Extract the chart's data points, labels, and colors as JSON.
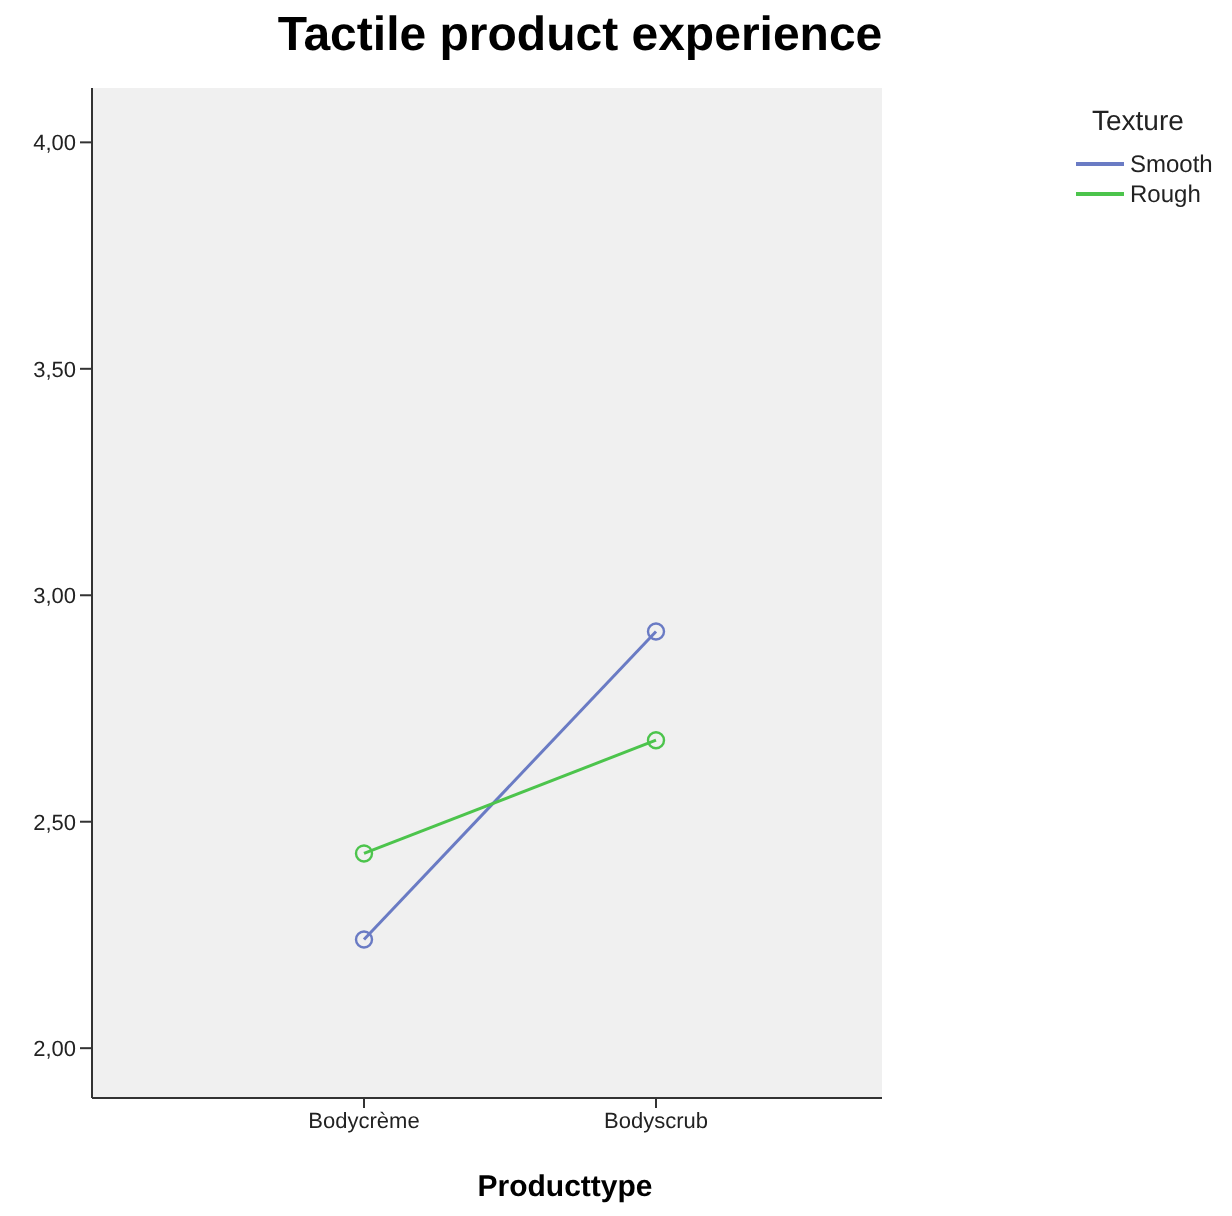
{
  "chart_data": {
    "type": "line",
    "title": "Tactile product experience",
    "xlabel": "Producttype",
    "legend_title": "Texture",
    "categories": [
      "Bodycrème",
      "Bodyscrub"
    ],
    "series": [
      {
        "name": "Smooth",
        "color": "#6a7bc4",
        "values": [
          2.24,
          2.92
        ]
      },
      {
        "name": "Rough",
        "color": "#4cc44c",
        "values": [
          2.43,
          2.68
        ]
      }
    ],
    "ylim": [
      1.89,
      4.12
    ],
    "yticks": [
      {
        "value": 2,
        "label": "2,00"
      },
      {
        "value": 2.5,
        "label": "2,50"
      },
      {
        "value": 3,
        "label": "3,00"
      },
      {
        "value": 3.5,
        "label": "3,50"
      },
      {
        "value": 4,
        "label": "4,00"
      }
    ],
    "grid": false,
    "legend": "right",
    "marker": "circle",
    "line_style": "solid"
  }
}
